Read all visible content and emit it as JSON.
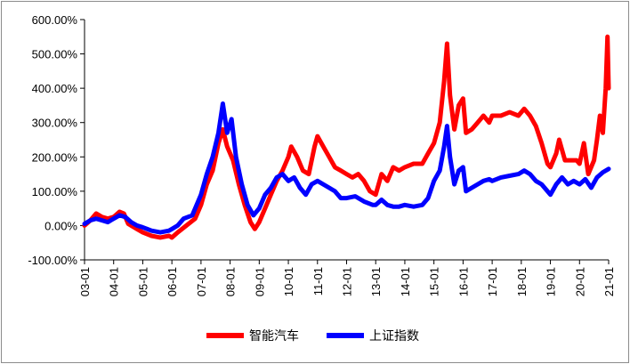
{
  "chart_data": {
    "type": "line",
    "title": "",
    "xlabel": "",
    "ylabel": "",
    "ylim": [
      -1.0,
      6.0
    ],
    "y_ticks": [
      "600.00%",
      "500.00%",
      "400.00%",
      "300.00%",
      "200.00%",
      "100.00%",
      "0.00%",
      "-100.00%"
    ],
    "y_tick_values": [
      6,
      5,
      4,
      3,
      2,
      1,
      0,
      -1
    ],
    "x_ticks": [
      "03-01",
      "04-01",
      "05-01",
      "06-01",
      "07-01",
      "08-01",
      "09-01",
      "10-01",
      "11-01",
      "12-01",
      "13-01",
      "14-01",
      "15-01",
      "16-01",
      "17-01",
      "18-01",
      "19-01",
      "20-01",
      "21-01"
    ],
    "xlim": [
      2003.0,
      2021.0
    ],
    "grid": false,
    "legend_position": "bottom-center",
    "series": [
      {
        "name": "智能汽车",
        "color": "#ff0000",
        "points": [
          [
            2003.0,
            0.0
          ],
          [
            2003.2,
            0.15
          ],
          [
            2003.4,
            0.35
          ],
          [
            2003.6,
            0.25
          ],
          [
            2003.8,
            0.2
          ],
          [
            2004.0,
            0.25
          ],
          [
            2004.2,
            0.4
          ],
          [
            2004.35,
            0.35
          ],
          [
            2004.5,
            0.05
          ],
          [
            2004.8,
            -0.1
          ],
          [
            2005.0,
            -0.2
          ],
          [
            2005.3,
            -0.3
          ],
          [
            2005.6,
            -0.35
          ],
          [
            2005.9,
            -0.3
          ],
          [
            2006.0,
            -0.35
          ],
          [
            2006.2,
            -0.2
          ],
          [
            2006.5,
            0.0
          ],
          [
            2006.8,
            0.2
          ],
          [
            2007.0,
            0.6
          ],
          [
            2007.2,
            1.2
          ],
          [
            2007.4,
            1.6
          ],
          [
            2007.6,
            2.4
          ],
          [
            2007.75,
            2.8
          ],
          [
            2007.9,
            2.3
          ],
          [
            2008.1,
            1.9
          ],
          [
            2008.3,
            1.2
          ],
          [
            2008.5,
            0.6
          ],
          [
            2008.7,
            0.1
          ],
          [
            2008.85,
            -0.1
          ],
          [
            2009.0,
            0.1
          ],
          [
            2009.2,
            0.5
          ],
          [
            2009.4,
            0.9
          ],
          [
            2009.6,
            1.3
          ],
          [
            2009.8,
            1.6
          ],
          [
            2010.0,
            2.0
          ],
          [
            2010.1,
            2.3
          ],
          [
            2010.3,
            2.0
          ],
          [
            2010.5,
            1.6
          ],
          [
            2010.7,
            1.5
          ],
          [
            2010.9,
            2.3
          ],
          [
            2011.0,
            2.6
          ],
          [
            2011.2,
            2.3
          ],
          [
            2011.4,
            2.0
          ],
          [
            2011.6,
            1.7
          ],
          [
            2011.8,
            1.6
          ],
          [
            2012.0,
            1.5
          ],
          [
            2012.2,
            1.4
          ],
          [
            2012.4,
            1.5
          ],
          [
            2012.6,
            1.3
          ],
          [
            2012.8,
            1.0
          ],
          [
            2013.0,
            0.9
          ],
          [
            2013.2,
            1.5
          ],
          [
            2013.4,
            1.3
          ],
          [
            2013.6,
            1.7
          ],
          [
            2013.8,
            1.6
          ],
          [
            2014.0,
            1.7
          ],
          [
            2014.3,
            1.8
          ],
          [
            2014.6,
            1.8
          ],
          [
            2014.8,
            2.1
          ],
          [
            2015.0,
            2.4
          ],
          [
            2015.2,
            3.0
          ],
          [
            2015.35,
            4.2
          ],
          [
            2015.45,
            5.3
          ],
          [
            2015.55,
            3.8
          ],
          [
            2015.7,
            2.8
          ],
          [
            2015.85,
            3.5
          ],
          [
            2016.0,
            3.7
          ],
          [
            2016.1,
            2.7
          ],
          [
            2016.3,
            2.8
          ],
          [
            2016.5,
            3.0
          ],
          [
            2016.7,
            3.2
          ],
          [
            2016.9,
            3.0
          ],
          [
            2017.0,
            3.2
          ],
          [
            2017.3,
            3.2
          ],
          [
            2017.6,
            3.3
          ],
          [
            2017.9,
            3.2
          ],
          [
            2018.1,
            3.4
          ],
          [
            2018.3,
            3.2
          ],
          [
            2018.5,
            2.9
          ],
          [
            2018.7,
            2.4
          ],
          [
            2018.9,
            1.8
          ],
          [
            2019.0,
            1.7
          ],
          [
            2019.2,
            2.1
          ],
          [
            2019.3,
            2.5
          ],
          [
            2019.5,
            1.9
          ],
          [
            2019.7,
            1.9
          ],
          [
            2019.9,
            1.9
          ],
          [
            2020.0,
            1.8
          ],
          [
            2020.15,
            2.4
          ],
          [
            2020.3,
            1.5
          ],
          [
            2020.5,
            1.9
          ],
          [
            2020.6,
            2.5
          ],
          [
            2020.7,
            3.2
          ],
          [
            2020.8,
            2.7
          ],
          [
            2020.9,
            4.0
          ],
          [
            2020.96,
            5.5
          ],
          [
            2021.0,
            4.0
          ]
        ]
      },
      {
        "name": "上证指数",
        "color": "#0000ff",
        "points": [
          [
            2003.0,
            0.05
          ],
          [
            2003.2,
            0.15
          ],
          [
            2003.4,
            0.2
          ],
          [
            2003.6,
            0.15
          ],
          [
            2003.8,
            0.1
          ],
          [
            2004.0,
            0.2
          ],
          [
            2004.2,
            0.3
          ],
          [
            2004.4,
            0.25
          ],
          [
            2004.6,
            0.1
          ],
          [
            2004.8,
            0.0
          ],
          [
            2005.0,
            -0.05
          ],
          [
            2005.3,
            -0.15
          ],
          [
            2005.6,
            -0.2
          ],
          [
            2005.9,
            -0.15
          ],
          [
            2006.0,
            -0.1
          ],
          [
            2006.2,
            0.0
          ],
          [
            2006.4,
            0.2
          ],
          [
            2006.7,
            0.3
          ],
          [
            2007.0,
            0.9
          ],
          [
            2007.2,
            1.5
          ],
          [
            2007.4,
            2.0
          ],
          [
            2007.6,
            2.7
          ],
          [
            2007.75,
            3.55
          ],
          [
            2007.9,
            2.7
          ],
          [
            2008.05,
            3.1
          ],
          [
            2008.2,
            2.0
          ],
          [
            2008.4,
            1.2
          ],
          [
            2008.6,
            0.6
          ],
          [
            2008.8,
            0.3
          ],
          [
            2009.0,
            0.5
          ],
          [
            2009.2,
            0.9
          ],
          [
            2009.4,
            1.1
          ],
          [
            2009.6,
            1.4
          ],
          [
            2009.8,
            1.5
          ],
          [
            2010.0,
            1.3
          ],
          [
            2010.2,
            1.4
          ],
          [
            2010.4,
            1.1
          ],
          [
            2010.6,
            0.9
          ],
          [
            2010.8,
            1.2
          ],
          [
            2011.0,
            1.3
          ],
          [
            2011.2,
            1.2
          ],
          [
            2011.4,
            1.1
          ],
          [
            2011.6,
            1.0
          ],
          [
            2011.8,
            0.8
          ],
          [
            2012.0,
            0.8
          ],
          [
            2012.3,
            0.85
          ],
          [
            2012.6,
            0.7
          ],
          [
            2012.9,
            0.6
          ],
          [
            2013.0,
            0.6
          ],
          [
            2013.2,
            0.75
          ],
          [
            2013.4,
            0.6
          ],
          [
            2013.6,
            0.55
          ],
          [
            2013.8,
            0.55
          ],
          [
            2014.0,
            0.6
          ],
          [
            2014.3,
            0.55
          ],
          [
            2014.6,
            0.6
          ],
          [
            2014.8,
            0.8
          ],
          [
            2015.0,
            1.3
          ],
          [
            2015.2,
            1.6
          ],
          [
            2015.35,
            2.3
          ],
          [
            2015.45,
            2.9
          ],
          [
            2015.55,
            2.0
          ],
          [
            2015.7,
            1.2
          ],
          [
            2015.85,
            1.6
          ],
          [
            2016.0,
            1.7
          ],
          [
            2016.1,
            1.0
          ],
          [
            2016.3,
            1.1
          ],
          [
            2016.5,
            1.2
          ],
          [
            2016.7,
            1.3
          ],
          [
            2016.9,
            1.35
          ],
          [
            2017.0,
            1.3
          ],
          [
            2017.3,
            1.4
          ],
          [
            2017.6,
            1.45
          ],
          [
            2017.9,
            1.5
          ],
          [
            2018.1,
            1.6
          ],
          [
            2018.3,
            1.5
          ],
          [
            2018.5,
            1.3
          ],
          [
            2018.7,
            1.2
          ],
          [
            2018.9,
            1.0
          ],
          [
            2019.0,
            0.9
          ],
          [
            2019.2,
            1.2
          ],
          [
            2019.4,
            1.4
          ],
          [
            2019.6,
            1.2
          ],
          [
            2019.8,
            1.3
          ],
          [
            2020.0,
            1.2
          ],
          [
            2020.2,
            1.35
          ],
          [
            2020.4,
            1.1
          ],
          [
            2020.6,
            1.4
          ],
          [
            2020.8,
            1.55
          ],
          [
            2021.0,
            1.65
          ]
        ]
      }
    ]
  }
}
